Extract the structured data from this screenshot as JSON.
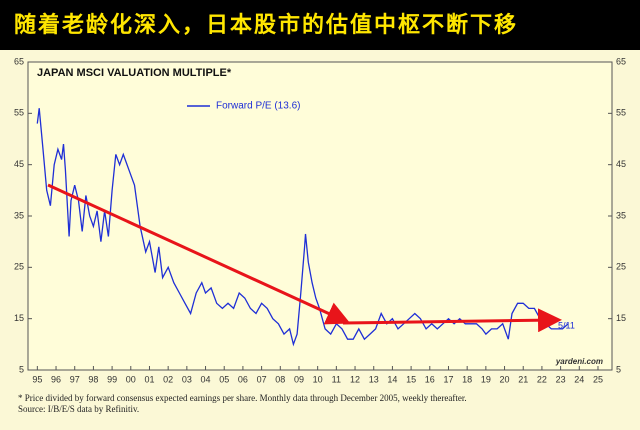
{
  "headline": "随着老龄化深入，日本股市的估值中枢不断下移",
  "chart_data": {
    "type": "line",
    "title": "JAPAN MSCI VALUATION MULTIPLE*",
    "x": [
      1995.0,
      1995.1,
      1995.3,
      1995.5,
      1995.7,
      1995.9,
      1996.1,
      1996.3,
      1996.4,
      1996.5,
      1996.7,
      1996.8,
      1997.0,
      1997.2,
      1997.4,
      1997.6,
      1997.8,
      1998.0,
      1998.2,
      1998.4,
      1998.6,
      1998.8,
      1999.0,
      1999.2,
      1999.4,
      1999.6,
      1999.9,
      2000.2,
      2000.5,
      2000.8,
      2001.0,
      2001.3,
      2001.5,
      2001.7,
      2002.0,
      2002.3,
      2002.6,
      2002.9,
      2003.2,
      2003.5,
      2003.8,
      2004.0,
      2004.3,
      2004.6,
      2004.9,
      2005.2,
      2005.5,
      2005.8,
      2006.1,
      2006.4,
      2006.7,
      2007.0,
      2007.3,
      2007.6,
      2007.9,
      2008.2,
      2008.5,
      2008.7,
      2008.9,
      2009.1,
      2009.3,
      2009.35,
      2009.5,
      2009.7,
      2009.9,
      2010.1,
      2010.4,
      2010.7,
      2011.0,
      2011.3,
      2011.6,
      2011.9,
      2012.2,
      2012.5,
      2012.8,
      2013.1,
      2013.4,
      2013.7,
      2014.0,
      2014.3,
      2014.6,
      2014.9,
      2015.2,
      2015.5,
      2015.8,
      2016.1,
      2016.4,
      2016.7,
      2017.0,
      2017.3,
      2017.6,
      2017.9,
      2018.2,
      2018.5,
      2018.8,
      2019.0,
      2019.3,
      2019.6,
      2019.9,
      2020.2,
      2020.4,
      2020.7,
      2021.0,
      2021.3,
      2021.6,
      2021.9,
      2022.2,
      2022.5,
      2022.8,
      2023.1,
      2023.4
    ],
    "series": [
      {
        "name": "Forward P/E (13.6)",
        "color": "#1f2fd6",
        "values": [
          53,
          56,
          48,
          40,
          37,
          45,
          48,
          46,
          49,
          44,
          31,
          38,
          41,
          38,
          32,
          39,
          35,
          33,
          36,
          30,
          36,
          31,
          40,
          47,
          45,
          47,
          44,
          41,
          33,
          28,
          30,
          24,
          29,
          23,
          25,
          22,
          20,
          18,
          16,
          20,
          22,
          20,
          21,
          18,
          17,
          18,
          17,
          20,
          19,
          17,
          16,
          18,
          17,
          15,
          14,
          12,
          13,
          10,
          12,
          20,
          29,
          31.5,
          26,
          22,
          19,
          17,
          13,
          12,
          14,
          13,
          11,
          11,
          13,
          11,
          12,
          13,
          16,
          14,
          15,
          13,
          14,
          15,
          16,
          15,
          13,
          14,
          13,
          14,
          15,
          14,
          15,
          14,
          14,
          14,
          13,
          12,
          13,
          13,
          14,
          11,
          16,
          18,
          18,
          17,
          17,
          15,
          14,
          13,
          13,
          13,
          14
        ]
      }
    ],
    "xlim": [
      1994.5,
      2025.75
    ],
    "ylim": [
      5,
      65
    ],
    "yticks": [
      5,
      15,
      25,
      35,
      45,
      55,
      65
    ],
    "xticks": [
      {
        "value": 1995,
        "label": "95"
      },
      {
        "value": 1996,
        "label": "96"
      },
      {
        "value": 1997,
        "label": "97"
      },
      {
        "value": 1998,
        "label": "98"
      },
      {
        "value": 1999,
        "label": "99"
      },
      {
        "value": 2000,
        "label": "00"
      },
      {
        "value": 2001,
        "label": "01"
      },
      {
        "value": 2002,
        "label": "02"
      },
      {
        "value": 2003,
        "label": "03"
      },
      {
        "value": 2004,
        "label": "04"
      },
      {
        "value": 2005,
        "label": "05"
      },
      {
        "value": 2006,
        "label": "06"
      },
      {
        "value": 2007,
        "label": "07"
      },
      {
        "value": 2008,
        "label": "08"
      },
      {
        "value": 2009,
        "label": "09"
      },
      {
        "value": 2010,
        "label": "10"
      },
      {
        "value": 2011,
        "label": "11"
      },
      {
        "value": 2012,
        "label": "12"
      },
      {
        "value": 2013,
        "label": "13"
      },
      {
        "value": 2014,
        "label": "14"
      },
      {
        "value": 2015,
        "label": "15"
      },
      {
        "value": 2016,
        "label": "16"
      },
      {
        "value": 2017,
        "label": "17"
      },
      {
        "value": 2018,
        "label": "18"
      },
      {
        "value": 2019,
        "label": "19"
      },
      {
        "value": 2020,
        "label": "20"
      },
      {
        "value": 2021,
        "label": "21"
      },
      {
        "value": 2022,
        "label": "22"
      },
      {
        "value": 2023,
        "label": "23"
      },
      {
        "value": 2024,
        "label": "24"
      },
      {
        "value": 2025,
        "label": "25"
      }
    ],
    "annotations": [
      "5/11",
      "yardeni.com"
    ],
    "notes": [
      "* Price divided by forward consensus expected earnings per share. Monthly data through December 2005, weekly thereafter.",
      "Source: I/B/E/S data by Refinitiv."
    ]
  }
}
